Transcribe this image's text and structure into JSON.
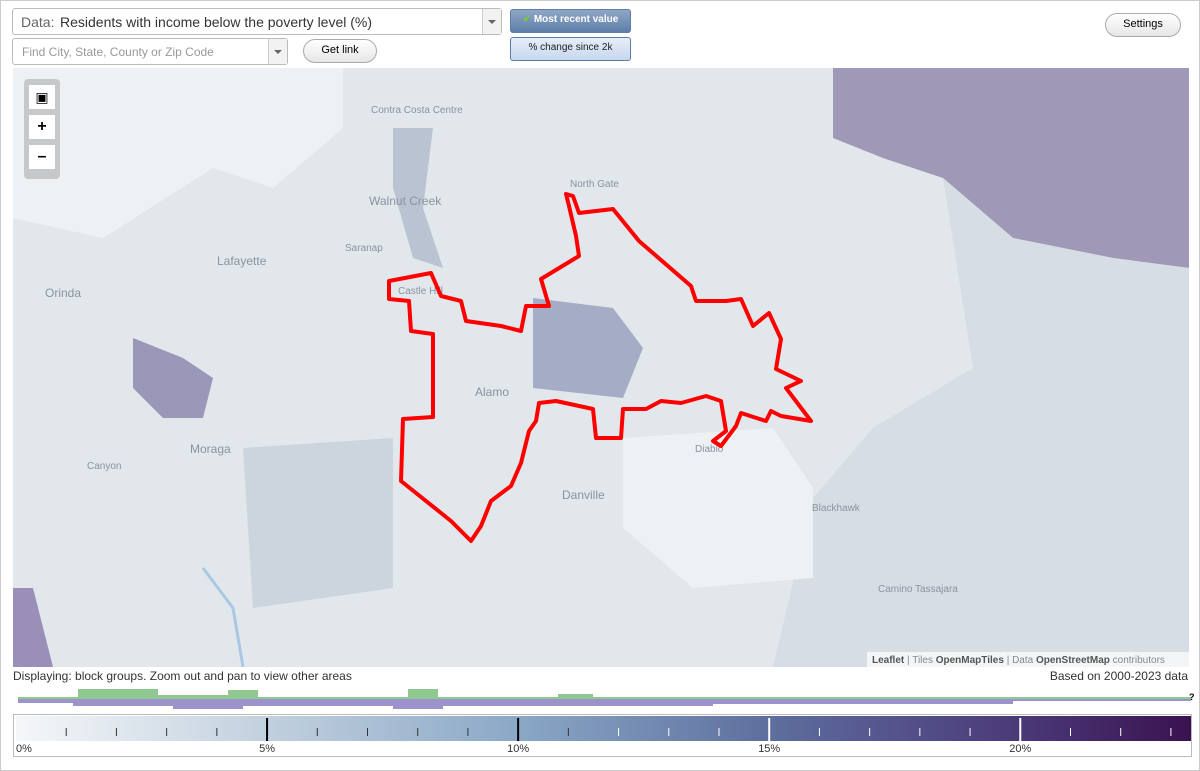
{
  "toolbar": {
    "data_label": "Data:",
    "data_value": "Residents with income below the poverty level (%)",
    "search_placeholder": "Find City, State, County or Zip Code",
    "get_link": "Get link",
    "mode_buttons": [
      "Most recent value",
      "% change since 2k"
    ],
    "settings": "Settings"
  },
  "map": {
    "place_labels": [
      "Contra Costa Centre",
      "North Gate",
      "Walnut Creek",
      "Saranap",
      "Lafayette",
      "Orinda",
      "Castle Hill",
      "Alamo",
      "Moraga",
      "Canyon",
      "Danville",
      "Diablo",
      "Blackhawk",
      "Camino Tassajara"
    ],
    "attribution": [
      "Leaflet",
      "| Tiles",
      "OpenMapTiles",
      "| Data",
      "OpenStreetMap",
      "contributors"
    ]
  },
  "footer": {
    "displaying": "Displaying: block groups. Zoom out and pan to view other areas",
    "based_on": "Based on 2000-2023 data",
    "help": "?"
  },
  "legend": {
    "range": [
      0,
      23.4
    ],
    "ticks": [
      {
        "value": 0,
        "label": "0%"
      },
      {
        "value": 5,
        "label": "5%"
      },
      {
        "value": 10,
        "label": "10%"
      },
      {
        "value": 15,
        "label": "15%"
      },
      {
        "value": 20,
        "label": "20%"
      }
    ],
    "minor_ticks": [
      1,
      2,
      3,
      4,
      6,
      7,
      8,
      9,
      11,
      12,
      13,
      14,
      16,
      17,
      18,
      19,
      21,
      22,
      23
    ]
  }
}
